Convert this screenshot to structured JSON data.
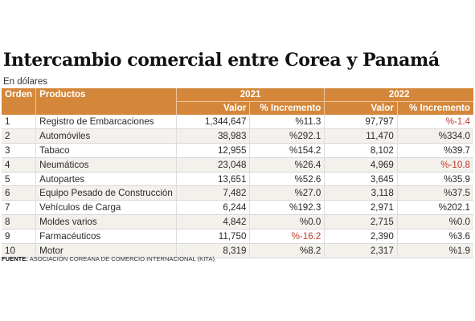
{
  "title": "Intercambio comercial entre Corea y Panamá",
  "subtitle": "En dólares",
  "headers": {
    "orden": "Orden",
    "productos": "Productos",
    "year1": "2021",
    "year2": "2022",
    "valor": "Valor",
    "incremento": "% Incremento"
  },
  "rows": [
    {
      "orden": "1",
      "producto": "Registro de Embarcaciones",
      "v2021": "1,344,647",
      "i2021": "%11.3",
      "v2022": "97,797",
      "i2022": "%-1.4"
    },
    {
      "orden": "2",
      "producto": "Automóviles",
      "v2021": "38,983",
      "i2021": "%292.1",
      "v2022": "11,470",
      "i2022": "%334.0"
    },
    {
      "orden": "3",
      "producto": "Tabaco",
      "v2021": "12,955",
      "i2021": "%154.2",
      "v2022": "8,102",
      "i2022": "%39.7"
    },
    {
      "orden": "4",
      "producto": "Neumáticos",
      "v2021": "23,048",
      "i2021": "%26.4",
      "v2022": "4,969",
      "i2022": "%-10.8"
    },
    {
      "orden": "5",
      "producto": "Autopartes",
      "v2021": "13,651",
      "i2021": "%52.6",
      "v2022": "3,645",
      "i2022": "%35.9"
    },
    {
      "orden": "6",
      "producto": "Equipo Pesado de Construcción",
      "v2021": "7,482",
      "i2021": "%27.0",
      "v2022": "3,118",
      "i2022": "%37.5"
    },
    {
      "orden": "7",
      "producto": "Vehículos de Carga",
      "v2021": "6,244",
      "i2021": "%192.3",
      "v2022": "2,971",
      "i2022": "%202.1"
    },
    {
      "orden": "8",
      "producto": "Moldes varios",
      "v2021": "4,842",
      "i2021": "%0.0",
      "v2022": "2,715",
      "i2022": "%0.0"
    },
    {
      "orden": "9",
      "producto": "Farmacéuticos",
      "v2021": "11,750",
      "i2021": "%-16.2",
      "v2022": "2,390",
      "i2022": "%3.6"
    },
    {
      "orden": "10",
      "producto": "Motor",
      "v2021": "8,319",
      "i2021": "%8.2",
      "v2022": "2,317",
      "i2022": "%1.9"
    }
  ],
  "source": {
    "label": "FUENTE:",
    "text": " ASOCIACIÓN COREANA DE COMERCIO INTERNACIONAL (KITA)"
  },
  "colors": {
    "header_bg": "#d4873a",
    "negative": "#c0392b",
    "alt_row": "#f4f1ec"
  }
}
